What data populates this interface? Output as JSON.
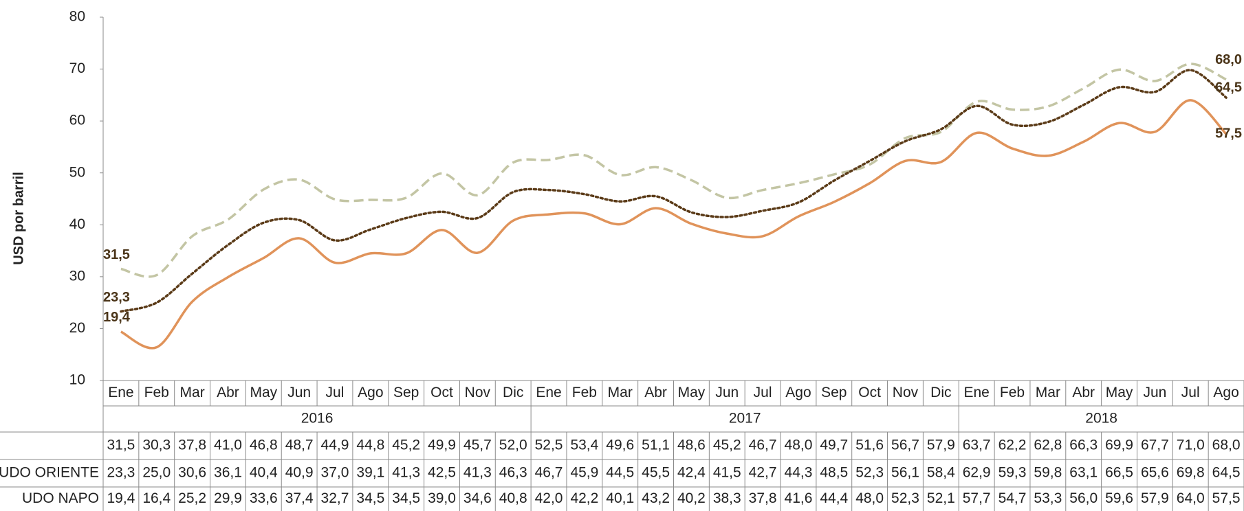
{
  "chart_data": {
    "type": "line",
    "y_label": "USD por barril",
    "categories": [
      "Ene",
      "Feb",
      "Mar",
      "Abr",
      "May",
      "Jun",
      "Jul",
      "Ago",
      "Sep",
      "Oct",
      "Nov",
      "Dic",
      "Ene",
      "Feb",
      "Mar",
      "Abr",
      "May",
      "Jun",
      "Jul",
      "Ago",
      "Sep",
      "Oct",
      "Nov",
      "Dic",
      "Ene",
      "Feb",
      "Mar",
      "Abr",
      "May",
      "Jun",
      "Jul",
      "Ago"
    ],
    "years": [
      "2016",
      "2017",
      "2018"
    ],
    "ylim": [
      10,
      80
    ],
    "yticks": [
      10,
      20,
      30,
      40,
      50,
      60,
      70,
      80
    ],
    "series": [
      {
        "color": "#c3c5a4",
        "dash": "dashed",
        "values": [
          31.5,
          30.3,
          37.8,
          41.0,
          46.8,
          48.7,
          44.9,
          44.8,
          45.2,
          49.9,
          45.7,
          52.0,
          52.5,
          53.4,
          49.6,
          51.1,
          48.6,
          45.2,
          46.7,
          48.0,
          49.7,
          51.6,
          56.7,
          57.9,
          63.7,
          62.2,
          62.8,
          66.3,
          69.9,
          67.7,
          71.0,
          68.0
        ],
        "value_labels": [
          "31,5",
          "30,3",
          "37,8",
          "41,0",
          "46,8",
          "48,7",
          "44,9",
          "44,8",
          "45,2",
          "49,9",
          "45,7",
          "52,0",
          "52,5",
          "53,4",
          "49,6",
          "51,1",
          "48,6",
          "45,2",
          "46,7",
          "48,0",
          "49,7",
          "51,6",
          "56,7",
          "57,9",
          "63,7",
          "62,2",
          "62,8",
          "66,3",
          "69,9",
          "67,7",
          "71,0",
          "68,0"
        ]
      },
      {
        "name": "UDO ORIENTE",
        "color": "#5b3b18",
        "dash": "dotted",
        "values": [
          23.3,
          25.0,
          30.6,
          36.1,
          40.4,
          40.9,
          37.0,
          39.1,
          41.3,
          42.5,
          41.3,
          46.3,
          46.7,
          45.9,
          44.5,
          45.5,
          42.4,
          41.5,
          42.7,
          44.3,
          48.5,
          52.3,
          56.1,
          58.4,
          62.9,
          59.3,
          59.8,
          63.1,
          66.5,
          65.6,
          69.8,
          64.5
        ],
        "value_labels": [
          "23,3",
          "25,0",
          "30,6",
          "36,1",
          "40,4",
          "40,9",
          "37,0",
          "39,1",
          "41,3",
          "42,5",
          "41,3",
          "46,3",
          "46,7",
          "45,9",
          "44,5",
          "45,5",
          "42,4",
          "41,5",
          "42,7",
          "44,3",
          "48,5",
          "52,3",
          "56,1",
          "58,4",
          "62,9",
          "59,3",
          "59,8",
          "63,1",
          "66,5",
          "65,6",
          "69,8",
          "64,5"
        ]
      },
      {
        "name": "UDO NAPO",
        "color": "#e0935a",
        "dash": "solid",
        "values": [
          19.4,
          16.4,
          25.2,
          29.9,
          33.6,
          37.4,
          32.7,
          34.5,
          34.5,
          39.0,
          34.6,
          40.8,
          42.0,
          42.2,
          40.1,
          43.2,
          40.2,
          38.3,
          37.8,
          41.6,
          44.4,
          48.0,
          52.3,
          52.1,
          57.7,
          54.7,
          53.3,
          56.0,
          59.6,
          57.9,
          64.0,
          57.5
        ],
        "value_labels": [
          "19,4",
          "16,4",
          "25,2",
          "29,9",
          "33,6",
          "37,4",
          "32,7",
          "34,5",
          "34,5",
          "39,0",
          "34,6",
          "40,8",
          "42,0",
          "42,2",
          "40,1",
          "43,2",
          "40,2",
          "38,3",
          "37,8",
          "41,6",
          "44,4",
          "48,0",
          "52,3",
          "52,1",
          "57,7",
          "54,7",
          "53,3",
          "56,0",
          "59,6",
          "57,9",
          "64,0",
          "57,5"
        ]
      }
    ]
  }
}
